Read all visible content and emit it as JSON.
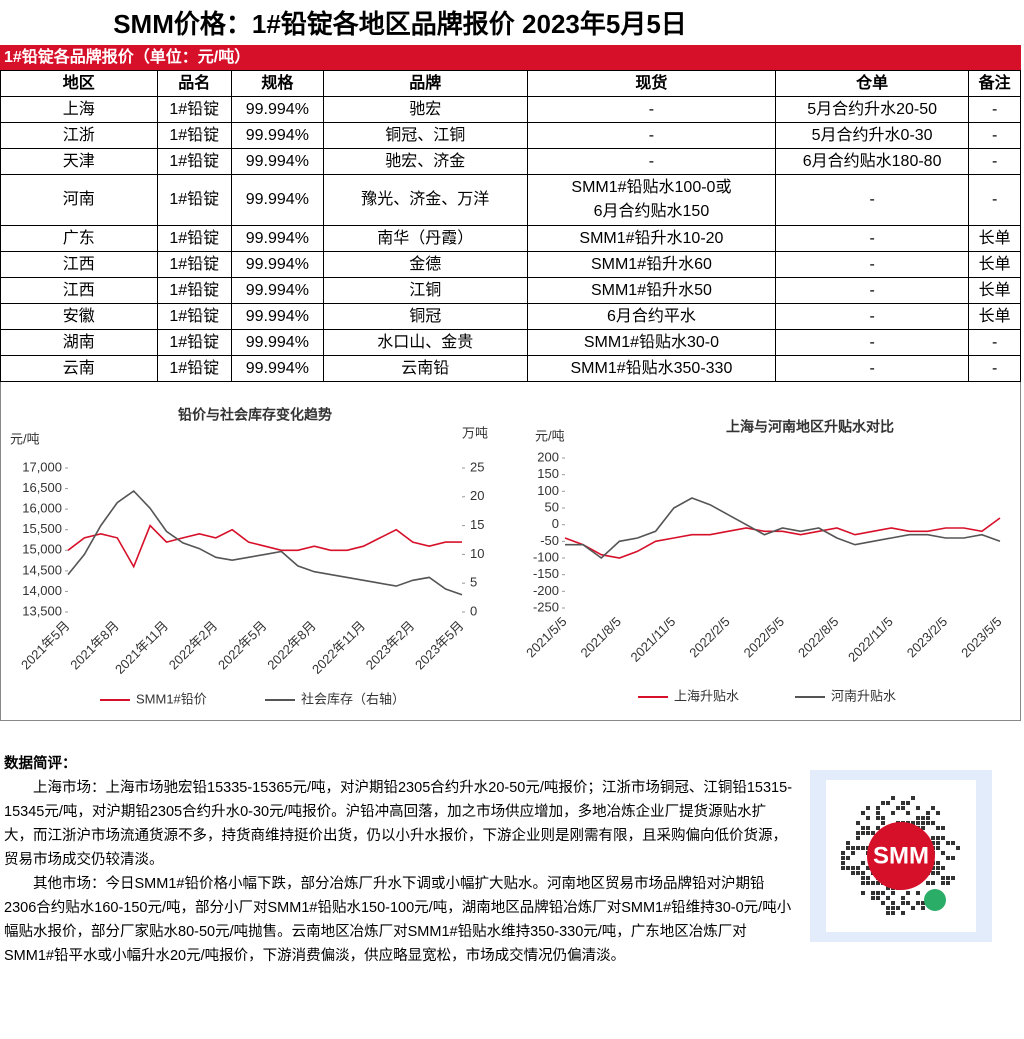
{
  "header": {
    "title": "SMM价格：1#铅锭各地区品牌报价 2023年5月5日"
  },
  "table": {
    "caption": "1#铅锭各品牌报价（单位：元/吨）",
    "columns": [
      "地区",
      "品名",
      "规格",
      "品牌",
      "现货",
      "仓单",
      "备注"
    ],
    "rows": [
      [
        "上海",
        "1#铅锭",
        "99.994%",
        "驰宏",
        "-",
        "5月合约升水20-50",
        "-"
      ],
      [
        "江浙",
        "1#铅锭",
        "99.994%",
        "铜冠、江铜",
        "-",
        "5月合约升水0-30",
        "-"
      ],
      [
        "天津",
        "1#铅锭",
        "99.994%",
        "驰宏、济金",
        "-",
        "6月合约贴水180-80",
        "-"
      ],
      [
        "河南",
        "1#铅锭",
        "99.994%",
        "豫光、济金、万洋",
        "SMM1#铅贴水100-0或\n6月合约贴水150",
        "-",
        "-"
      ],
      [
        "广东",
        "1#铅锭",
        "99.994%",
        "南华（丹霞）",
        "SMM1#铅升水10-20",
        "-",
        "长单"
      ],
      [
        "江西",
        "1#铅锭",
        "99.994%",
        "金德",
        "SMM1#铅升水60",
        "-",
        "长单"
      ],
      [
        "江西",
        "1#铅锭",
        "99.994%",
        "江铜",
        "SMM1#铅升水50",
        "-",
        "长单"
      ],
      [
        "安徽",
        "1#铅锭",
        "99.994%",
        "铜冠",
        "6月合约平水",
        "-",
        "长单"
      ],
      [
        "湖南",
        "1#铅锭",
        "99.994%",
        "水口山、金贵",
        "SMM1#铅贴水30-0",
        "-",
        "-"
      ],
      [
        "云南",
        "1#铅锭",
        "99.994%",
        "云南铅",
        "SMM1#铅贴水350-330",
        "-",
        "-"
      ]
    ]
  },
  "chart_data": [
    {
      "type": "line",
      "title": "铅价与社会库存变化趋势",
      "y_label": "元/吨",
      "y2_label": "万吨",
      "categories": [
        "2021年5月",
        null,
        null,
        "2021年8月",
        null,
        null,
        "2021年11月",
        null,
        null,
        "2022年2月",
        null,
        null,
        "2022年5月",
        null,
        null,
        "2022年8月",
        null,
        null,
        "2022年11月",
        null,
        null,
        "2023年2月",
        null,
        null,
        "2023年5月"
      ],
      "series": [
        {
          "name": "SMM1#铅价",
          "color": "#d7102a",
          "values": [
            15000,
            15300,
            15400,
            15300,
            14600,
            15600,
            15200,
            15300,
            15400,
            15300,
            15500,
            15200,
            15100,
            15000,
            15000,
            15100,
            15000,
            15000,
            15100,
            15300,
            15500,
            15200,
            15100,
            15200,
            15200
          ]
        },
        {
          "name": "社会库存（右轴）",
          "color": "#555555",
          "axis": "y2",
          "values": [
            6.5,
            10,
            15,
            19,
            21,
            18,
            14,
            12,
            11,
            9.5,
            9,
            9.5,
            10,
            10.5,
            8,
            7,
            6.5,
            6,
            5.5,
            5,
            4.5,
            5.5,
            6,
            4,
            3
          ]
        }
      ],
      "ylim": [
        13500,
        17000
      ],
      "yticks": [
        {
          "value": 13500,
          "label": "13,500"
        },
        {
          "value": 14000,
          "label": "14,000"
        },
        {
          "value": 14500,
          "label": "14,500"
        },
        {
          "value": 15000,
          "label": "15,000"
        },
        {
          "value": 15500,
          "label": "15,500"
        },
        {
          "value": 16000,
          "label": "16,000"
        },
        {
          "value": 16500,
          "label": "16,500"
        },
        {
          "value": 17000,
          "label": "17,000"
        }
      ],
      "y2lim": [
        0,
        25
      ],
      "y2ticks": [
        0,
        5,
        10,
        15,
        20,
        25
      ],
      "grid": false,
      "legend": "bottom"
    },
    {
      "type": "line",
      "title": "上海与河南地区升贴水对比",
      "y_label": "元/吨",
      "categories": [
        "2021/5/5",
        null,
        null,
        "2021/8/5",
        null,
        null,
        "2021/11/5",
        null,
        null,
        "2022/2/5",
        null,
        null,
        "2022/5/5",
        null,
        null,
        "2022/8/5",
        null,
        null,
        "2022/11/5",
        null,
        null,
        "2023/2/5",
        null,
        null,
        "2023/5/5"
      ],
      "series": [
        {
          "name": "上海升贴水",
          "color": "#d7102a",
          "values": [
            -40,
            -60,
            -90,
            -100,
            -80,
            -50,
            -40,
            -30,
            -30,
            -20,
            -10,
            -20,
            -20,
            -30,
            -20,
            -10,
            -30,
            -20,
            -10,
            -20,
            -20,
            -10,
            -10,
            -20,
            20
          ]
        },
        {
          "name": "河南升贴水",
          "color": "#555555",
          "values": [
            -60,
            -60,
            -100,
            -50,
            -40,
            -20,
            50,
            80,
            60,
            30,
            0,
            -30,
            -10,
            -20,
            -10,
            -40,
            -60,
            -50,
            -40,
            -30,
            -30,
            -40,
            -40,
            -30,
            -50
          ]
        }
      ],
      "ylim": [
        -250,
        200
      ],
      "yticks": [
        -250,
        -200,
        -150,
        -100,
        -50,
        0,
        50,
        100,
        150,
        200
      ],
      "grid": false,
      "legend": "bottom"
    }
  ],
  "commentary": {
    "heading": "数据简评：",
    "paragraphs": [
      "上海市场：上海市场驰宏铅15335-15365元/吨，对沪期铅2305合约升水20-50元/吨报价；江浙市场铜冠、江铜铅15315-15345元/吨，对沪期铅2305合约升水0-30元/吨报价。沪铅冲高回落，加之市场供应增加，多地冶炼企业厂提货源贴水扩大，而江浙沪市场流通货源不多，持货商维持挺价出货，仍以小升水报价，下游企业则是刚需有限，且采购偏向低价货源，贸易市场成交仍较清淡。",
      "其他市场：今日SMM1#铅价格小幅下跌，部分冶炼厂升水下调或小幅扩大贴水。河南地区贸易市场品牌铅对沪期铅2306合约贴水160-150元/吨，部分小厂对SMM1#铅贴水150-100元/吨，湖南地区品牌铅冶炼厂对SMM1#铅维持30-0元/吨小幅贴水报价，部分厂家贴水80-50元/吨抛售。云南地区冶炼厂对SMM1#铅贴水维持350-330元/吨，广东地区冶炼厂对SMM1#铅平水或小幅升水20元/吨报价，下游消费偏淡，供应略显宽松，市场成交情况仍偏清淡。"
    ]
  },
  "qr": {
    "logo": "SMM"
  }
}
